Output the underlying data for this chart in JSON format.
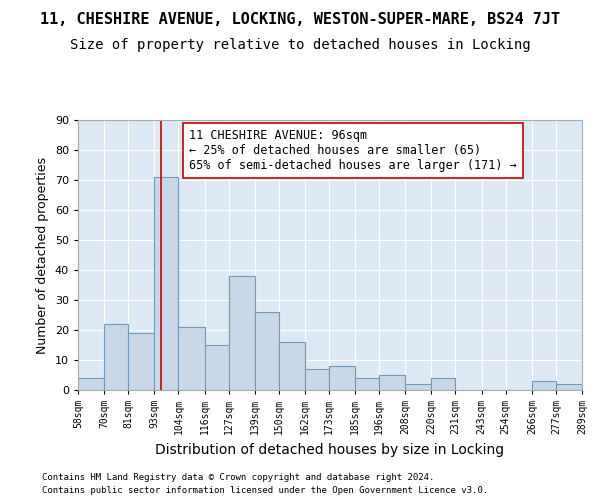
{
  "title1": "11, CHESHIRE AVENUE, LOCKING, WESTON-SUPER-MARE, BS24 7JT",
  "title2": "Size of property relative to detached houses in Locking",
  "xlabel": "Distribution of detached houses by size in Locking",
  "ylabel": "Number of detached properties",
  "footer1": "Contains HM Land Registry data © Crown copyright and database right 2024.",
  "footer2": "Contains public sector information licensed under the Open Government Licence v3.0.",
  "bins": [
    58,
    70,
    81,
    93,
    104,
    116,
    127,
    139,
    150,
    162,
    173,
    185,
    196,
    208,
    220,
    231,
    243,
    254,
    266,
    277,
    289
  ],
  "bin_labels": [
    "58sqm",
    "70sqm",
    "81sqm",
    "93sqm",
    "104sqm",
    "116sqm",
    "127sqm",
    "139sqm",
    "150sqm",
    "162sqm",
    "173sqm",
    "185sqm",
    "196sqm",
    "208sqm",
    "220sqm",
    "231sqm",
    "243sqm",
    "254sqm",
    "266sqm",
    "277sqm",
    "289sqm"
  ],
  "values": [
    4,
    22,
    19,
    71,
    21,
    15,
    38,
    26,
    16,
    7,
    8,
    4,
    5,
    2,
    4,
    0,
    0,
    0,
    3,
    2
  ],
  "bar_color": "#c8d8e8",
  "bar_edge_color": "#7099bb",
  "property_line_x": 96,
  "property_line_color": "#cc0000",
  "annotation_text": "11 CHESHIRE AVENUE: 96sqm\n← 25% of detached houses are smaller (65)\n65% of semi-detached houses are larger (171) →",
  "annotation_box_color": "white",
  "annotation_box_edge": "#cc0000",
  "ylim": [
    0,
    90
  ],
  "yticks": [
    0,
    10,
    20,
    30,
    40,
    50,
    60,
    70,
    80,
    90
  ],
  "bg_color": "#dce8f4",
  "title1_fontsize": 11,
  "title2_fontsize": 10,
  "xlabel_fontsize": 10,
  "ylabel_fontsize": 9,
  "annotation_fontsize": 8.5
}
